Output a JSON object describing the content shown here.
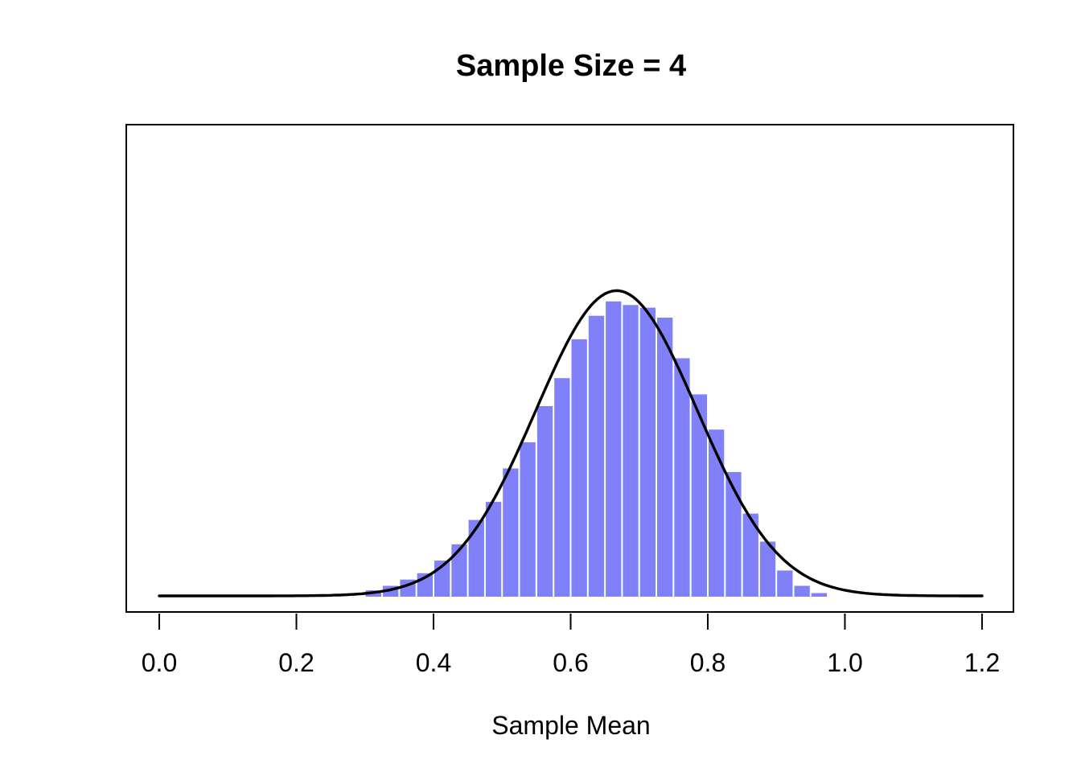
{
  "chart_data": {
    "type": "bar",
    "subtype": "histogram-with-density-curve",
    "title": "Sample Size = 4",
    "xlabel": "Sample Mean",
    "ylabel": "",
    "grid": false,
    "legend": "none",
    "xlim": [
      -0.05,
      1.25
    ],
    "x_axis_range_shown": [
      0.0,
      1.2
    ],
    "bin_width": 0.025,
    "bin_starts": [
      0.3,
      0.325,
      0.35,
      0.375,
      0.4,
      0.425,
      0.45,
      0.475,
      0.5,
      0.525,
      0.55,
      0.575,
      0.6,
      0.625,
      0.65,
      0.675,
      0.7,
      0.725,
      0.75,
      0.775,
      0.8,
      0.825,
      0.85,
      0.875,
      0.9,
      0.925,
      0.95
    ],
    "densities": [
      0.07,
      0.12,
      0.19,
      0.26,
      0.4,
      0.58,
      0.85,
      1.05,
      1.42,
      1.71,
      2.11,
      2.42,
      2.85,
      3.11,
      3.27,
      3.23,
      3.2,
      3.09,
      2.64,
      2.24,
      1.85,
      1.38,
      0.92,
      0.61,
      0.29,
      0.12,
      0.04
    ],
    "x_ticks": [
      {
        "value": 0.0,
        "label": "0.0"
      },
      {
        "value": 0.2,
        "label": "0.2"
      },
      {
        "value": 0.4,
        "label": "0.4"
      },
      {
        "value": 0.6,
        "label": "0.6"
      },
      {
        "value": 0.8,
        "label": "0.8"
      },
      {
        "value": 1.0,
        "label": "1.0"
      },
      {
        "value": 1.2,
        "label": "1.2"
      }
    ],
    "curve": {
      "distribution": "normal",
      "mean": 0.667,
      "sd": 0.118,
      "peak_density": 3.38,
      "x_start": 0.0,
      "x_end": 1.2,
      "color": "#000000"
    },
    "bar_color": "#8080f8",
    "bar_gap_color": "#ffffff",
    "frame_color": "#000000",
    "background_color": "#ffffff"
  }
}
